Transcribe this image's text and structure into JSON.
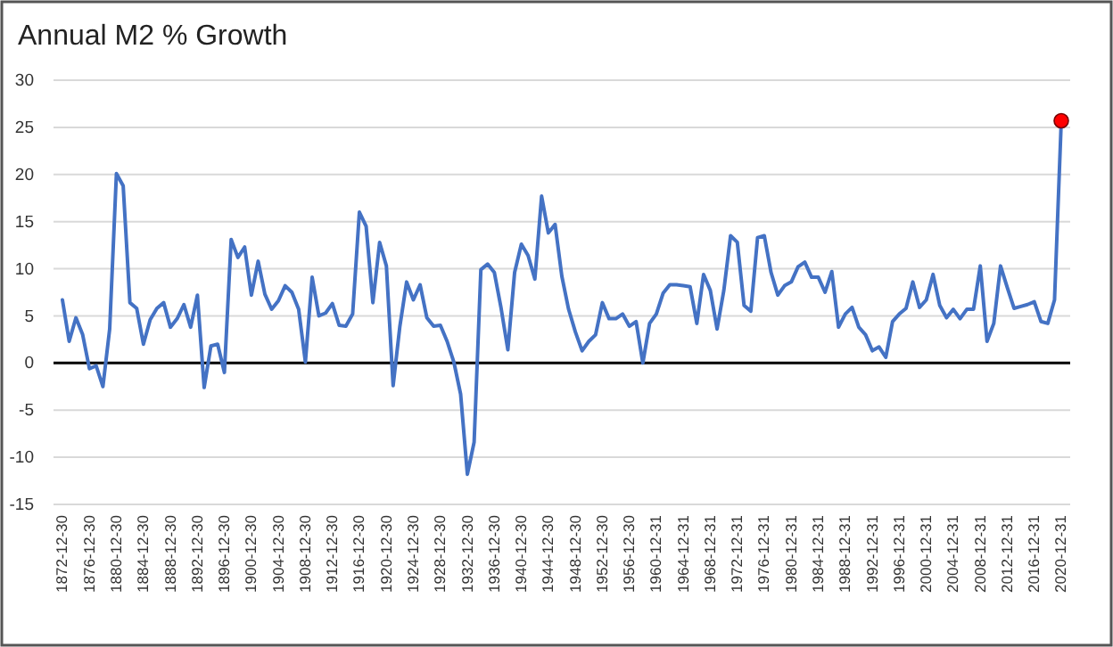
{
  "chart_data": {
    "type": "line",
    "title": "Annual M2 % Growth",
    "categories": [
      "1872-12-30",
      null,
      null,
      null,
      "1876-12-30",
      null,
      null,
      null,
      "1880-12-30",
      null,
      null,
      null,
      "1884-12-30",
      null,
      null,
      null,
      "1888-12-30",
      null,
      null,
      null,
      "1892-12-30",
      null,
      null,
      null,
      "1896-12-30",
      null,
      null,
      null,
      "1900-12-30",
      null,
      null,
      null,
      "1904-12-30",
      null,
      null,
      null,
      "1908-12-30",
      null,
      null,
      null,
      "1912-12-30",
      null,
      null,
      null,
      "1916-12-30",
      null,
      null,
      null,
      "1920-12-30",
      null,
      null,
      null,
      "1924-12-30",
      null,
      null,
      null,
      "1928-12-30",
      null,
      null,
      null,
      "1932-12-30",
      null,
      null,
      null,
      "1936-12-30",
      null,
      null,
      null,
      "1940-12-30",
      null,
      null,
      null,
      "1944-12-30",
      null,
      null,
      null,
      "1948-12-30",
      null,
      null,
      null,
      "1952-12-30",
      null,
      null,
      null,
      "1956-12-30",
      null,
      null,
      null,
      "1960-12-31",
      null,
      null,
      null,
      "1964-12-31",
      null,
      null,
      null,
      "1968-12-31",
      null,
      null,
      null,
      "1972-12-31",
      null,
      null,
      null,
      "1976-12-31",
      null,
      null,
      null,
      "1980-12-31",
      null,
      null,
      null,
      "1984-12-31",
      null,
      null,
      null,
      "1988-12-31",
      null,
      null,
      null,
      "1992-12-31",
      null,
      null,
      null,
      "1996-12-31",
      null,
      null,
      null,
      "2000-12-31",
      null,
      null,
      null,
      "2004-12-31",
      null,
      null,
      null,
      "2008-12-31",
      null,
      null,
      null,
      "2012-12-31",
      null,
      null,
      null,
      "2016-12-31",
      null,
      null,
      null,
      "2020-12-31"
    ],
    "series": [
      {
        "color": "#4472c4",
        "values": [
          6.7,
          2.3,
          4.8,
          3.0,
          -0.6,
          -0.3,
          -2.5,
          3.6,
          20.1,
          18.8,
          6.4,
          5.8,
          2.0,
          4.6,
          5.8,
          6.4,
          3.8,
          4.7,
          6.2,
          3.8,
          7.2,
          -2.6,
          1.8,
          2.0,
          -1.0,
          13.1,
          11.2,
          12.3,
          7.2,
          10.8,
          7.3,
          5.7,
          6.6,
          8.2,
          7.5,
          5.7,
          0.1,
          9.1,
          5.0,
          5.3,
          6.3,
          4.0,
          3.9,
          5.2,
          16.0,
          14.5,
          6.4,
          12.8,
          10.3,
          -2.4,
          3.9,
          8.6,
          6.7,
          8.3,
          4.8,
          3.9,
          4.0,
          2.3,
          0.1,
          -3.3,
          -11.8,
          -8.4,
          9.9,
          10.5,
          9.6,
          5.8,
          1.4,
          9.6,
          12.6,
          11.4,
          8.9,
          17.7,
          13.8,
          14.7,
          9.2,
          5.7,
          3.3,
          1.3,
          2.3,
          3.0,
          6.4,
          4.7,
          4.7,
          5.2,
          3.9,
          4.4,
          0.0,
          4.2,
          5.2,
          7.4,
          8.3,
          8.3,
          8.2,
          8.1,
          4.2,
          9.4,
          7.7,
          3.6,
          7.7,
          13.5,
          12.8,
          6.1,
          5.5,
          13.3,
          13.5,
          9.6,
          7.2,
          8.2,
          8.6,
          10.2,
          10.7,
          9.1,
          9.1,
          7.5,
          9.7,
          3.8,
          5.2,
          5.9,
          3.8,
          3.0,
          1.3,
          1.7,
          0.6,
          4.4,
          5.2,
          5.8,
          8.6,
          5.9,
          6.7,
          9.4,
          6.1,
          4.8,
          5.7,
          4.7,
          5.7,
          5.7,
          10.3,
          2.3,
          4.2,
          10.3,
          8.0,
          5.8,
          6.0,
          6.2,
          6.5,
          4.4,
          4.2,
          6.7,
          25.7
        ]
      },
      {
        "type": "scatter",
        "color": "#ff0000",
        "values": [
          null,
          null,
          null,
          null,
          null,
          null,
          null,
          null,
          null,
          null,
          null,
          null,
          null,
          null,
          null,
          null,
          null,
          null,
          null,
          null,
          null,
          null,
          null,
          null,
          null,
          null,
          null,
          null,
          null,
          null,
          null,
          null,
          null,
          null,
          null,
          null,
          null,
          null,
          null,
          null,
          null,
          null,
          null,
          null,
          null,
          null,
          null,
          null,
          null,
          null,
          null,
          null,
          null,
          null,
          null,
          null,
          null,
          null,
          null,
          null,
          null,
          null,
          null,
          null,
          null,
          null,
          null,
          null,
          null,
          null,
          null,
          null,
          null,
          null,
          null,
          null,
          null,
          null,
          null,
          null,
          null,
          null,
          null,
          null,
          null,
          null,
          null,
          null,
          null,
          null,
          null,
          null,
          null,
          null,
          null,
          null,
          null,
          null,
          null,
          null,
          null,
          null,
          null,
          null,
          null,
          null,
          null,
          null,
          null,
          null,
          null,
          null,
          null,
          null,
          null,
          null,
          null,
          null,
          null,
          null,
          null,
          null,
          null,
          null,
          null,
          null,
          null,
          null,
          null,
          null,
          null,
          null,
          null,
          null,
          null,
          null,
          null,
          null,
          null,
          null,
          null,
          null,
          null,
          null,
          null,
          null,
          null,
          null,
          25.7
        ]
      }
    ],
    "ylim": [
      -15,
      30
    ],
    "yticks": [
      -15,
      -10,
      -5,
      0,
      5,
      10,
      15,
      20,
      25,
      30
    ],
    "grid": "y"
  }
}
